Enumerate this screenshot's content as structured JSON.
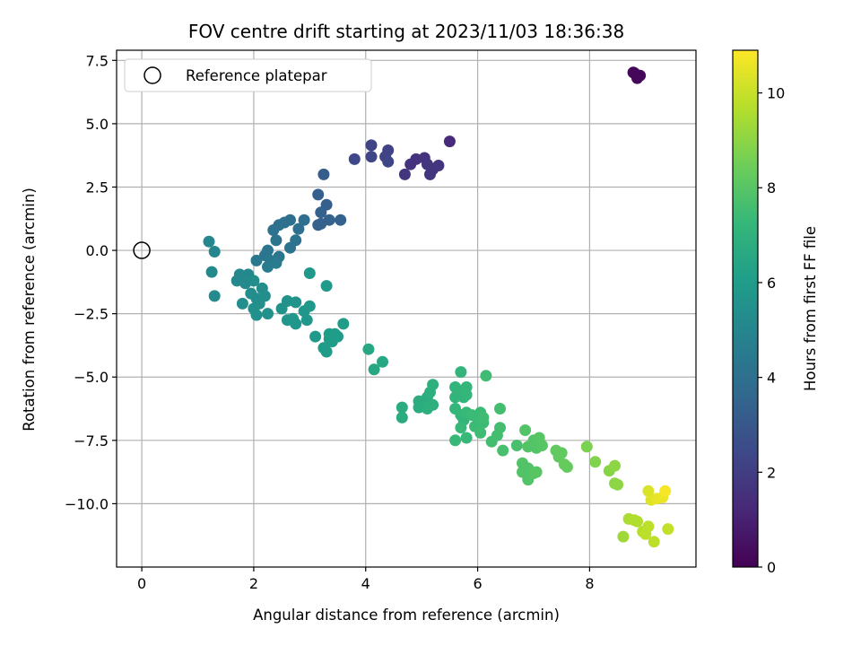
{
  "chart_data": {
    "type": "scatter",
    "title": "FOV centre drift starting at 2023/11/03 18:36:38",
    "xlabel": "Angular distance from reference (arcmin)",
    "ylabel": "Rotation from reference (arcmin)",
    "xlim": [
      -0.45,
      9.9
    ],
    "ylim": [
      -12.5,
      7.9
    ],
    "xticks": [
      0,
      2,
      4,
      6,
      8
    ],
    "yticks": [
      -10.0,
      -7.5,
      -5.0,
      -2.5,
      0.0,
      2.5,
      5.0,
      7.5
    ],
    "xtick_labels": [
      "0",
      "2",
      "4",
      "6",
      "8"
    ],
    "ytick_labels": [
      "−10.0",
      "−7.5",
      "−5.0",
      "−2.5",
      "0.0",
      "2.5",
      "5.0",
      "7.5"
    ],
    "grid": true,
    "legend": {
      "placement": "top-left",
      "entries": [
        "Reference platepar"
      ]
    },
    "reference_point": {
      "x": 0.0,
      "y": 0.0,
      "marker": "open-circle"
    },
    "colorbar": {
      "label": "Hours from first FF file",
      "range": [
        0,
        10.9
      ],
      "ticks": [
        0,
        2,
        4,
        6,
        8,
        10
      ],
      "tick_labels": [
        "0",
        "2",
        "4",
        "6",
        "8",
        "10"
      ],
      "colormap": "viridis",
      "colormap_stops": [
        "#440154",
        "#482878",
        "#3e4989",
        "#31688e",
        "#26828e",
        "#1f9e89",
        "#35b779",
        "#6ece58",
        "#b5de2b",
        "#fde725"
      ]
    },
    "series": [
      {
        "points": [
          [
            8.8,
            7.0,
            0.2
          ],
          [
            8.85,
            6.8,
            0.2
          ],
          [
            8.9,
            6.9,
            0.2
          ],
          [
            8.78,
            7.02,
            0.2
          ],
          [
            5.5,
            4.3,
            1.3
          ],
          [
            4.9,
            3.6,
            1.6
          ],
          [
            5.05,
            3.65,
            1.6
          ],
          [
            4.8,
            3.4,
            1.6
          ],
          [
            5.2,
            3.2,
            1.7
          ],
          [
            5.15,
            3.0,
            1.7
          ],
          [
            4.7,
            3.0,
            1.7
          ],
          [
            5.1,
            3.4,
            1.7
          ],
          [
            5.3,
            3.35,
            1.7
          ],
          [
            4.1,
            4.15,
            2.2
          ],
          [
            4.4,
            3.95,
            2.2
          ],
          [
            4.35,
            3.7,
            2.2
          ],
          [
            4.4,
            3.5,
            2.3
          ],
          [
            4.1,
            3.7,
            2.3
          ],
          [
            3.8,
            3.6,
            2.4
          ],
          [
            3.25,
            3.0,
            3.2
          ],
          [
            3.15,
            2.2,
            3.3
          ],
          [
            3.3,
            1.8,
            3.3
          ],
          [
            3.2,
            1.5,
            3.4
          ],
          [
            3.2,
            1.05,
            3.4
          ],
          [
            3.15,
            1.0,
            3.4
          ],
          [
            3.35,
            1.2,
            3.4
          ],
          [
            3.55,
            1.2,
            3.4
          ],
          [
            2.9,
            1.2,
            4.0
          ],
          [
            2.8,
            0.85,
            4.0
          ],
          [
            2.65,
            1.2,
            4.0
          ],
          [
            2.55,
            1.1,
            4.0
          ],
          [
            2.45,
            1.0,
            4.0
          ],
          [
            2.35,
            0.8,
            4.1
          ],
          [
            2.75,
            0.4,
            4.1
          ],
          [
            2.65,
            0.1,
            4.1
          ],
          [
            2.4,
            0.4,
            4.2
          ],
          [
            2.25,
            0.0,
            4.3
          ],
          [
            2.2,
            -0.2,
            4.3
          ],
          [
            2.45,
            -0.25,
            4.3
          ],
          [
            2.3,
            -0.4,
            4.4
          ],
          [
            2.05,
            -0.4,
            4.4
          ],
          [
            2.25,
            -0.65,
            4.5
          ],
          [
            2.4,
            -0.5,
            4.5
          ],
          [
            1.2,
            0.35,
            5.0
          ],
          [
            1.3,
            -0.05,
            5.0
          ],
          [
            1.25,
            -0.85,
            5.1
          ],
          [
            1.3,
            -1.8,
            5.2
          ],
          [
            1.75,
            -0.95,
            5.1
          ],
          [
            1.9,
            -0.95,
            5.1
          ],
          [
            1.7,
            -1.2,
            5.1
          ],
          [
            1.85,
            -1.3,
            5.2
          ],
          [
            2.0,
            -1.2,
            5.3
          ],
          [
            1.95,
            -1.7,
            5.3
          ],
          [
            2.05,
            -1.9,
            5.3
          ],
          [
            2.15,
            -1.5,
            5.3
          ],
          [
            2.1,
            -2.1,
            5.4
          ],
          [
            1.8,
            -2.1,
            5.4
          ],
          [
            2.2,
            -1.8,
            5.4
          ],
          [
            2.0,
            -2.3,
            5.5
          ],
          [
            2.05,
            -2.55,
            5.5
          ],
          [
            2.25,
            -2.5,
            5.5
          ],
          [
            2.5,
            -2.3,
            5.6
          ],
          [
            2.6,
            -2.0,
            5.6
          ],
          [
            2.75,
            -2.05,
            5.6
          ],
          [
            2.6,
            -2.75,
            5.7
          ],
          [
            2.75,
            -2.9,
            5.7
          ],
          [
            2.7,
            -2.7,
            5.7
          ],
          [
            2.9,
            -2.4,
            5.7
          ],
          [
            2.95,
            -2.75,
            5.7
          ],
          [
            3.0,
            -2.2,
            5.8
          ],
          [
            3.0,
            -0.9,
            5.8
          ],
          [
            3.3,
            -1.4,
            5.9
          ],
          [
            3.1,
            -3.4,
            5.9
          ],
          [
            3.25,
            -3.85,
            6.0
          ],
          [
            3.3,
            -4.0,
            6.0
          ],
          [
            3.35,
            -3.5,
            6.0
          ],
          [
            3.4,
            -3.6,
            6.0
          ],
          [
            3.45,
            -3.3,
            6.0
          ],
          [
            3.35,
            -3.3,
            6.0
          ],
          [
            3.5,
            -3.4,
            6.0
          ],
          [
            3.6,
            -2.9,
            6.0
          ],
          [
            4.05,
            -3.9,
            6.5
          ],
          [
            4.15,
            -4.7,
            6.5
          ],
          [
            4.3,
            -4.4,
            6.5
          ],
          [
            4.65,
            -6.2,
            6.7
          ],
          [
            4.65,
            -6.6,
            6.7
          ],
          [
            4.95,
            -5.95,
            6.8
          ],
          [
            4.95,
            -6.2,
            6.8
          ],
          [
            5.05,
            -6.1,
            6.8
          ],
          [
            5.1,
            -5.8,
            6.8
          ],
          [
            5.1,
            -6.25,
            6.9
          ],
          [
            5.2,
            -6.1,
            6.9
          ],
          [
            5.15,
            -5.6,
            6.9
          ],
          [
            5.2,
            -5.3,
            6.9
          ],
          [
            5.6,
            -5.4,
            7.1
          ],
          [
            5.6,
            -5.8,
            7.1
          ],
          [
            5.7,
            -4.8,
            7.1
          ],
          [
            5.7,
            -5.6,
            7.1
          ],
          [
            5.75,
            -5.8,
            7.1
          ],
          [
            5.8,
            -5.4,
            7.2
          ],
          [
            5.8,
            -5.7,
            7.2
          ],
          [
            5.6,
            -6.25,
            7.2
          ],
          [
            5.7,
            -6.5,
            7.2
          ],
          [
            5.75,
            -6.7,
            7.2
          ],
          [
            5.8,
            -6.4,
            7.3
          ],
          [
            5.7,
            -7.0,
            7.3
          ],
          [
            5.6,
            -7.5,
            7.3
          ],
          [
            5.8,
            -7.4,
            7.3
          ],
          [
            5.9,
            -6.5,
            7.4
          ],
          [
            6.0,
            -6.6,
            7.4
          ],
          [
            6.05,
            -6.4,
            7.4
          ],
          [
            6.1,
            -6.8,
            7.4
          ],
          [
            5.95,
            -6.95,
            7.4
          ],
          [
            6.1,
            -6.6,
            7.5
          ],
          [
            6.05,
            -7.2,
            7.5
          ],
          [
            6.15,
            -4.95,
            7.5
          ],
          [
            6.25,
            -7.55,
            7.6
          ],
          [
            6.35,
            -7.3,
            7.6
          ],
          [
            6.4,
            -7.0,
            7.6
          ],
          [
            6.4,
            -6.25,
            7.6
          ],
          [
            6.45,
            -7.9,
            7.7
          ],
          [
            6.7,
            -7.7,
            7.7
          ],
          [
            6.85,
            -7.1,
            7.9
          ],
          [
            6.9,
            -7.75,
            7.9
          ],
          [
            7.0,
            -7.5,
            7.9
          ],
          [
            7.05,
            -7.8,
            7.9
          ],
          [
            7.1,
            -7.4,
            8.0
          ],
          [
            7.15,
            -7.7,
            8.0
          ],
          [
            6.8,
            -8.4,
            7.9
          ],
          [
            6.8,
            -8.75,
            7.9
          ],
          [
            6.9,
            -8.6,
            7.9
          ],
          [
            6.9,
            -9.05,
            7.9
          ],
          [
            7.0,
            -8.8,
            8.0
          ],
          [
            7.05,
            -8.75,
            8.0
          ],
          [
            7.4,
            -7.9,
            8.2
          ],
          [
            7.45,
            -8.15,
            8.2
          ],
          [
            7.5,
            -8.0,
            8.2
          ],
          [
            7.55,
            -8.45,
            8.3
          ],
          [
            7.6,
            -8.55,
            8.3
          ],
          [
            7.95,
            -7.75,
            8.7
          ],
          [
            8.1,
            -8.35,
            8.8
          ],
          [
            8.35,
            -8.7,
            8.9
          ],
          [
            8.45,
            -8.5,
            9.0
          ],
          [
            8.45,
            -9.2,
            9.0
          ],
          [
            8.5,
            -9.25,
            9.0
          ],
          [
            8.6,
            -11.3,
            9.3
          ],
          [
            8.7,
            -10.6,
            9.5
          ],
          [
            8.8,
            -10.65,
            9.6
          ],
          [
            8.85,
            -10.7,
            9.6
          ],
          [
            8.95,
            -11.1,
            9.7
          ],
          [
            9.05,
            -10.9,
            9.8
          ],
          [
            9.0,
            -11.2,
            9.8
          ],
          [
            9.15,
            -11.5,
            9.8
          ],
          [
            9.4,
            -11.0,
            9.9
          ],
          [
            9.05,
            -9.5,
            10.3
          ],
          [
            9.1,
            -9.85,
            10.4
          ],
          [
            9.2,
            -9.8,
            10.5
          ],
          [
            9.3,
            -9.75,
            10.6
          ],
          [
            9.35,
            -9.5,
            10.8
          ]
        ]
      }
    ]
  }
}
